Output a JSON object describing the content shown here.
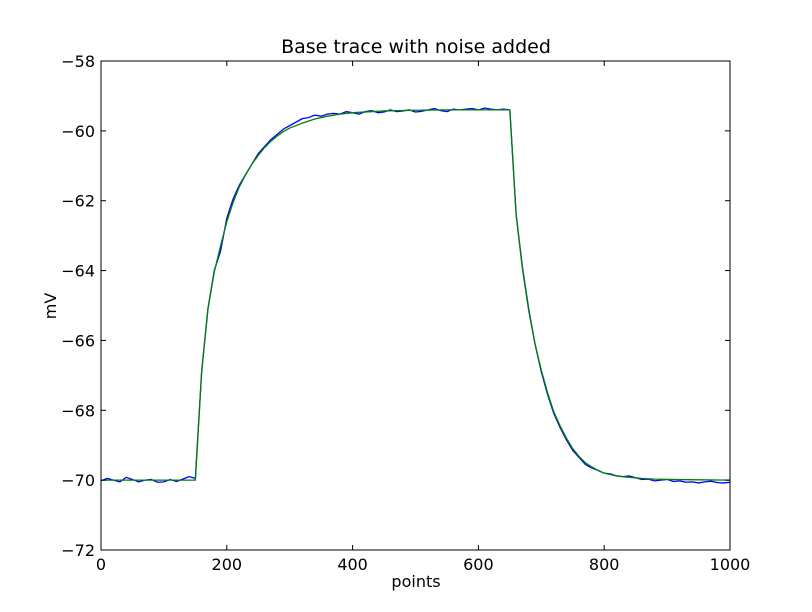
{
  "chart_data": {
    "type": "line",
    "title": "Base trace with noise added",
    "xlabel": "points",
    "ylabel": "mV",
    "xlim": [
      0,
      1000
    ],
    "ylim": [
      -72,
      -58
    ],
    "x_ticks": [
      0,
      200,
      400,
      600,
      800,
      1000
    ],
    "y_ticks": [
      -72,
      -70,
      -68,
      -66,
      -64,
      -62,
      -60,
      -58
    ],
    "x_tick_labels": [
      "0",
      "200",
      "400",
      "600",
      "800",
      "1000"
    ],
    "y_tick_labels": [
      "−72",
      "−70",
      "−68",
      "−66",
      "−64",
      "−62",
      "−60",
      "−58"
    ],
    "grid": false,
    "legend": "none",
    "series": [
      {
        "color": "#0000ff",
        "points": [
          [
            0,
            -70.02
          ],
          [
            10,
            -69.95
          ],
          [
            20,
            -70.0
          ],
          [
            30,
            -70.05
          ],
          [
            40,
            -69.92
          ],
          [
            50,
            -69.98
          ],
          [
            60,
            -70.05
          ],
          [
            70,
            -70.0
          ],
          [
            80,
            -69.98
          ],
          [
            90,
            -70.06
          ],
          [
            100,
            -70.05
          ],
          [
            110,
            -69.98
          ],
          [
            120,
            -70.04
          ],
          [
            130,
            -69.97
          ],
          [
            140,
            -69.9
          ],
          [
            150,
            -69.95
          ],
          [
            160,
            -66.9
          ],
          [
            170,
            -65.1
          ],
          [
            180,
            -64.0
          ],
          [
            190,
            -63.45
          ],
          [
            200,
            -62.5
          ],
          [
            210,
            -61.95
          ],
          [
            220,
            -61.55
          ],
          [
            230,
            -61.25
          ],
          [
            240,
            -60.95
          ],
          [
            250,
            -60.65
          ],
          [
            260,
            -60.45
          ],
          [
            270,
            -60.25
          ],
          [
            280,
            -60.1
          ],
          [
            290,
            -59.95
          ],
          [
            300,
            -59.85
          ],
          [
            310,
            -59.75
          ],
          [
            320,
            -59.65
          ],
          [
            330,
            -59.62
          ],
          [
            340,
            -59.55
          ],
          [
            350,
            -59.58
          ],
          [
            360,
            -59.52
          ],
          [
            370,
            -59.5
          ],
          [
            380,
            -59.52
          ],
          [
            390,
            -59.45
          ],
          [
            400,
            -59.48
          ],
          [
            410,
            -59.52
          ],
          [
            420,
            -59.45
          ],
          [
            430,
            -59.42
          ],
          [
            440,
            -59.48
          ],
          [
            450,
            -59.46
          ],
          [
            460,
            -59.4
          ],
          [
            470,
            -59.45
          ],
          [
            480,
            -59.43
          ],
          [
            490,
            -59.4
          ],
          [
            500,
            -59.46
          ],
          [
            510,
            -59.44
          ],
          [
            520,
            -59.4
          ],
          [
            530,
            -59.36
          ],
          [
            540,
            -59.42
          ],
          [
            550,
            -59.45
          ],
          [
            560,
            -59.38
          ],
          [
            570,
            -59.4
          ],
          [
            580,
            -59.38
          ],
          [
            590,
            -59.36
          ],
          [
            600,
            -59.4
          ],
          [
            610,
            -59.35
          ],
          [
            620,
            -59.38
          ],
          [
            630,
            -59.4
          ],
          [
            640,
            -59.38
          ],
          [
            650,
            -59.4
          ],
          [
            660,
            -62.4
          ],
          [
            670,
            -63.9
          ],
          [
            680,
            -65.1
          ],
          [
            690,
            -66.1
          ],
          [
            700,
            -66.9
          ],
          [
            710,
            -67.55
          ],
          [
            720,
            -68.1
          ],
          [
            730,
            -68.5
          ],
          [
            740,
            -68.85
          ],
          [
            750,
            -69.15
          ],
          [
            760,
            -69.35
          ],
          [
            770,
            -69.55
          ],
          [
            780,
            -69.65
          ],
          [
            790,
            -69.72
          ],
          [
            800,
            -69.8
          ],
          [
            810,
            -69.82
          ],
          [
            820,
            -69.88
          ],
          [
            830,
            -69.9
          ],
          [
            840,
            -69.88
          ],
          [
            850,
            -69.93
          ],
          [
            860,
            -69.98
          ],
          [
            870,
            -69.97
          ],
          [
            880,
            -70.02
          ],
          [
            890,
            -70.0
          ],
          [
            900,
            -69.98
          ],
          [
            910,
            -70.04
          ],
          [
            920,
            -70.02
          ],
          [
            930,
            -70.06
          ],
          [
            940,
            -70.05
          ],
          [
            950,
            -70.08
          ],
          [
            960,
            -70.05
          ],
          [
            970,
            -70.03
          ],
          [
            980,
            -70.07
          ],
          [
            990,
            -70.08
          ],
          [
            1000,
            -70.06
          ]
        ]
      },
      {
        "color": "#008000",
        "points": [
          [
            0,
            -70.0
          ],
          [
            150,
            -70.0
          ],
          [
            160,
            -66.9
          ],
          [
            170,
            -65.1
          ],
          [
            180,
            -64.05
          ],
          [
            190,
            -63.3
          ],
          [
            200,
            -62.6
          ],
          [
            210,
            -62.05
          ],
          [
            220,
            -61.6
          ],
          [
            230,
            -61.25
          ],
          [
            240,
            -60.95
          ],
          [
            250,
            -60.7
          ],
          [
            260,
            -60.48
          ],
          [
            270,
            -60.3
          ],
          [
            280,
            -60.15
          ],
          [
            290,
            -60.02
          ],
          [
            300,
            -59.92
          ],
          [
            320,
            -59.78
          ],
          [
            340,
            -59.66
          ],
          [
            360,
            -59.58
          ],
          [
            380,
            -59.52
          ],
          [
            400,
            -59.48
          ],
          [
            450,
            -59.43
          ],
          [
            500,
            -59.41
          ],
          [
            550,
            -59.4
          ],
          [
            600,
            -59.4
          ],
          [
            650,
            -59.4
          ],
          [
            660,
            -62.4
          ],
          [
            670,
            -63.95
          ],
          [
            680,
            -65.15
          ],
          [
            690,
            -66.1
          ],
          [
            700,
            -66.85
          ],
          [
            710,
            -67.5
          ],
          [
            720,
            -68.05
          ],
          [
            730,
            -68.45
          ],
          [
            740,
            -68.8
          ],
          [
            750,
            -69.1
          ],
          [
            760,
            -69.32
          ],
          [
            770,
            -69.5
          ],
          [
            780,
            -69.62
          ],
          [
            790,
            -69.72
          ],
          [
            800,
            -69.8
          ],
          [
            820,
            -69.88
          ],
          [
            840,
            -69.92
          ],
          [
            860,
            -69.95
          ],
          [
            880,
            -69.97
          ],
          [
            900,
            -69.98
          ],
          [
            950,
            -69.99
          ],
          [
            1000,
            -70.0
          ]
        ]
      }
    ]
  }
}
